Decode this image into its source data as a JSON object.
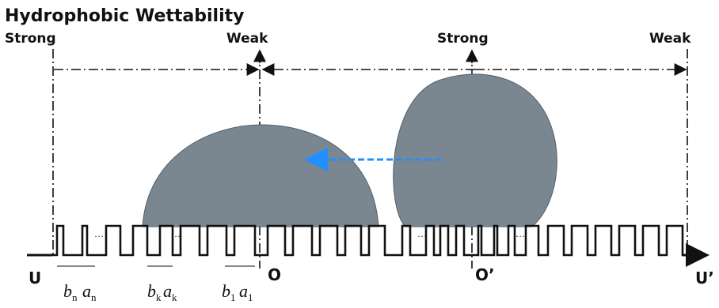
{
  "title": "Hydrophobic Wettability",
  "labels": {
    "left_strong": "Strong",
    "left_weak": "Weak",
    "right_strong": "Strong",
    "right_weak": "Weak",
    "axis_origin_left": "U",
    "origin_o": "O",
    "origin_o_prime": "O’",
    "axis_end": "U’"
  },
  "dimension_labels": [
    {
      "base": "b",
      "sub": "n"
    },
    {
      "base": "a",
      "sub": "n"
    },
    {
      "base": "b",
      "sub": "k"
    },
    {
      "base": "a",
      "sub": "k"
    },
    {
      "base": "b",
      "sub": "1"
    },
    {
      "base": "a",
      "sub": "1"
    }
  ],
  "ellipsis": "…",
  "colors": {
    "droplet": "#7a8690",
    "arrow": "#1e90ff",
    "line": "#111111"
  }
}
